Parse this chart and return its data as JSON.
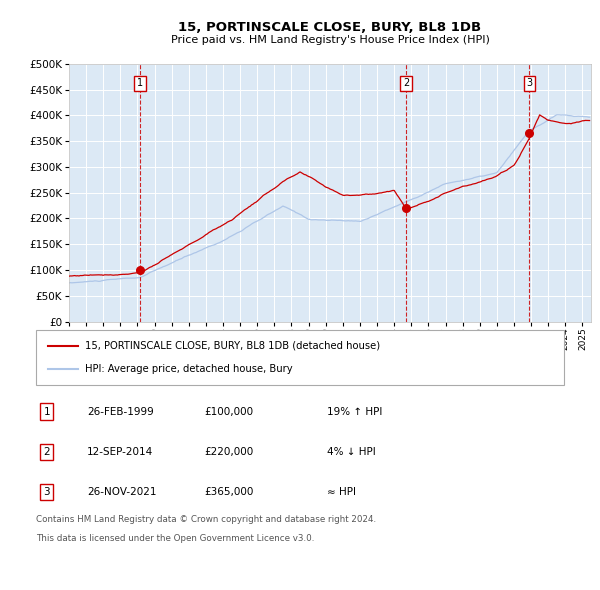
{
  "title": "15, PORTINSCALE CLOSE, BURY, BL8 1DB",
  "subtitle": "Price paid vs. HM Land Registry's House Price Index (HPI)",
  "sale_points": [
    {
      "label": "1",
      "date": "26-FEB-1999",
      "price": 100000,
      "note": "19% ↑ HPI",
      "x_year": 1999.15
    },
    {
      "label": "2",
      "date": "12-SEP-2014",
      "price": 220000,
      "note": "4% ↓ HPI",
      "x_year": 2014.7
    },
    {
      "label": "3",
      "date": "26-NOV-2021",
      "price": 365000,
      "note": "≈ HPI",
      "x_year": 2021.9
    }
  ],
  "legend_line1": "15, PORTINSCALE CLOSE, BURY, BL8 1DB (detached house)",
  "legend_line2": "HPI: Average price, detached house, Bury",
  "footer1": "Contains HM Land Registry data © Crown copyright and database right 2024.",
  "footer2": "This data is licensed under the Open Government Licence v3.0.",
  "hpi_color": "#aec6e8",
  "price_color": "#cc0000",
  "plot_bg": "#dce9f5",
  "grid_color": "#ffffff",
  "dashed_color": "#cc0000",
  "ylim": [
    0,
    500000
  ],
  "yticks": [
    0,
    50000,
    100000,
    150000,
    200000,
    250000,
    300000,
    350000,
    400000,
    450000,
    500000
  ],
  "xmin": 1995.0,
  "xmax": 2025.5
}
